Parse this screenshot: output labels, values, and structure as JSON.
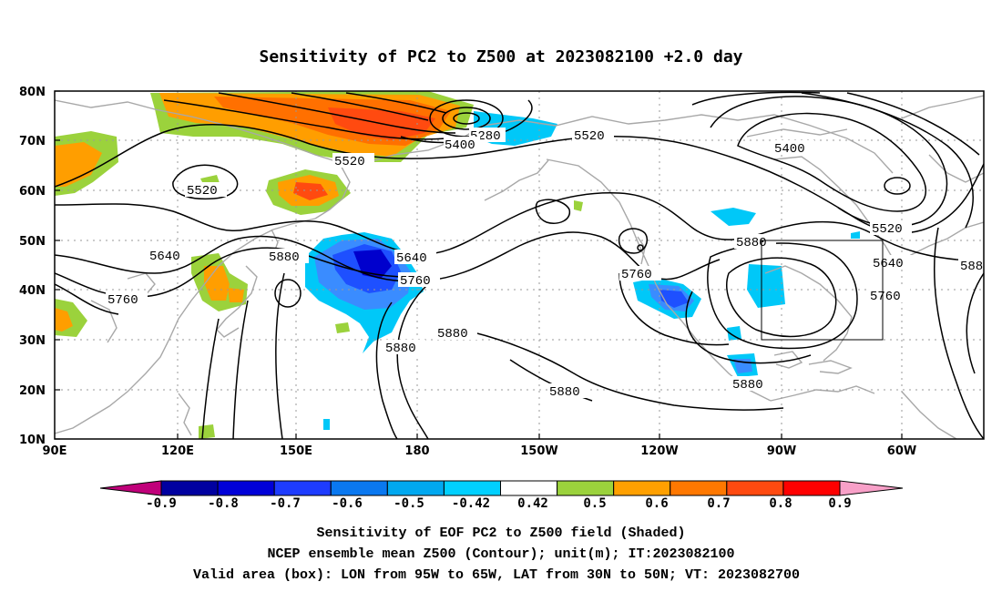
{
  "title": "Sensitivity of PC2 to Z500 at 2023082100 +2.0 day",
  "map": {
    "lat_ticks": [
      "80N",
      "70N",
      "60N",
      "50N",
      "40N",
      "30N",
      "20N",
      "10N"
    ],
    "lon_ticks": [
      "90E",
      "120E",
      "150E",
      "180",
      "150W",
      "120W",
      "90W",
      "60W"
    ],
    "contour_labels": [
      "5280",
      "5400",
      "5520",
      "5520",
      "5520",
      "5400",
      "5520",
      "5640",
      "5640",
      "5640",
      "5760",
      "5760",
      "5760",
      "5760",
      "5880",
      "5880",
      "5880",
      "5880",
      "5880",
      "5880",
      "588"
    ],
    "shading_colors": {
      "neg_strong": "#0000cd",
      "neg_mid": "#1e50ff",
      "neg_weak": "#3a8cff",
      "neg_faint": "#00c8f8",
      "pos_faint": "#9bd23c",
      "pos_weak": "#ff9e00",
      "pos_mid": "#ff7000",
      "pos_strong": "#ff4a10"
    },
    "valid_box": {
      "lon_range": [
        "95W",
        "65W"
      ],
      "lat_range": [
        "30N",
        "50N"
      ]
    }
  },
  "colorbar": {
    "labels": [
      "-0.9",
      "-0.8",
      "-0.7",
      "-0.6",
      "-0.5",
      "-0.42",
      "0.42",
      "0.5",
      "0.6",
      "0.7",
      "0.8",
      "0.9"
    ],
    "colors": [
      "#0000a0",
      "#0000d8",
      "#1e3cff",
      "#0a78f0",
      "#00a8f0",
      "#00d0ff",
      "#ffffff",
      "#9bd23c",
      "#ffa000",
      "#ff7800",
      "#ff4a10",
      "#ff0000"
    ],
    "left_tip_color": "#c0007a",
    "right_tip_color": "#f8a0c8"
  },
  "caption": {
    "line1": "Sensitivity of EOF PC2 to Z500 field (Shaded)",
    "line2": "NCEP ensemble mean Z500 (Contour); unit(m); IT:2023082100",
    "line3": "Valid area (box): LON from 95W to 65W, LAT from 30N to 50N; VT: 2023082700"
  }
}
